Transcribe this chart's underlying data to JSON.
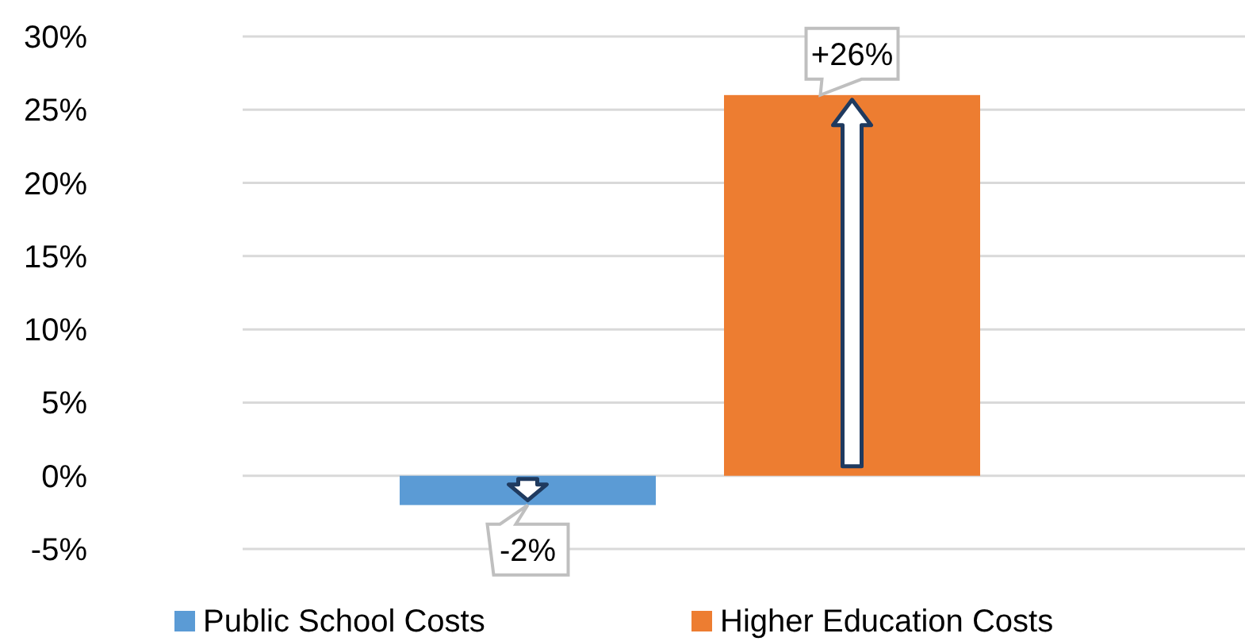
{
  "chart_data": {
    "type": "bar",
    "categories": [
      null
    ],
    "series": [
      {
        "name": "Public School Costs",
        "color": "#5b9bd5",
        "values": [
          -2
        ],
        "value_labels": [
          "-2%"
        ]
      },
      {
        "name": "Higher Education Costs",
        "color": "#ed7d31",
        "values": [
          26
        ],
        "value_labels": [
          "+26%"
        ]
      }
    ],
    "ylim": [
      -5,
      30
    ],
    "yticks": [
      {
        "value": -5,
        "label": "-5%"
      },
      {
        "value": 0,
        "label": "0%"
      },
      {
        "value": 5,
        "label": "5%"
      },
      {
        "value": 10,
        "label": "10%"
      },
      {
        "value": 15,
        "label": "15%"
      },
      {
        "value": 20,
        "label": "20%"
      },
      {
        "value": 25,
        "label": "25%"
      },
      {
        "value": 30,
        "label": "30%"
      }
    ],
    "grid": "y",
    "legend": "bottom"
  }
}
